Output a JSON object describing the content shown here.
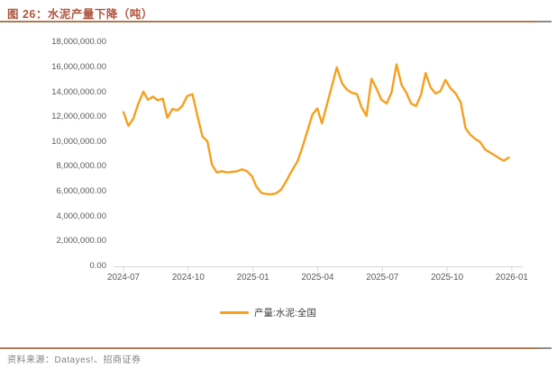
{
  "header": {
    "title": "图 26：水泥产量下降（吨）"
  },
  "legend": {
    "label": "产量:水泥:全国"
  },
  "footer": {
    "source": "资料来源：Datayes!、招商证券"
  },
  "colors": {
    "line": "#F6A01E",
    "title": "#B0543E",
    "rule_brown": "#AF7A52",
    "rule_gray": "#8C8C8C",
    "axis_text": "#595959",
    "axis_line": "#D6D6D6"
  },
  "chart_data": {
    "type": "line",
    "title": "水泥产量下降（吨）",
    "xlabel": "",
    "ylabel": "",
    "ylim": [
      0,
      18000000
    ],
    "y_tick_interval": 2000000,
    "grid": false,
    "legend_position": "bottom",
    "y_tick_labels": [
      "18,000,000.00",
      "16,000,000.00",
      "14,000,000.00",
      "12,000,000.00",
      "10,000,000.00",
      "8,000,000.00",
      "6,000,000.00",
      "4,000,000.00",
      "2,000,000.00",
      "0.00"
    ],
    "x_tick_labels": [
      "2024-07",
      "2024-10",
      "2025-01",
      "2025-04",
      "2025-07",
      "2025-10",
      "2026-01"
    ],
    "series": [
      {
        "name": "产量:水泥:全国",
        "color": "#F6A01E",
        "points": [
          [
            "2024-07-01",
            12400000
          ],
          [
            "2024-07-08",
            11300000
          ],
          [
            "2024-07-15",
            11900000
          ],
          [
            "2024-07-22",
            13100000
          ],
          [
            "2024-07-29",
            14050000
          ],
          [
            "2024-08-05",
            13400000
          ],
          [
            "2024-08-12",
            13650000
          ],
          [
            "2024-08-19",
            13350000
          ],
          [
            "2024-08-26",
            13500000
          ],
          [
            "2024-09-02",
            11950000
          ],
          [
            "2024-09-09",
            12650000
          ],
          [
            "2024-09-16",
            12550000
          ],
          [
            "2024-09-23",
            12900000
          ],
          [
            "2024-09-30",
            13700000
          ],
          [
            "2024-10-07",
            13850000
          ],
          [
            "2024-10-14",
            12100000
          ],
          [
            "2024-10-21",
            10450000
          ],
          [
            "2024-10-28",
            10050000
          ],
          [
            "2024-11-04",
            8200000
          ],
          [
            "2024-11-11",
            7550000
          ],
          [
            "2024-11-18",
            7650000
          ],
          [
            "2024-11-25",
            7550000
          ],
          [
            "2024-12-02",
            7600000
          ],
          [
            "2024-12-09",
            7650000
          ],
          [
            "2024-12-16",
            7800000
          ],
          [
            "2024-12-23",
            7650000
          ],
          [
            "2024-12-30",
            7250000
          ],
          [
            "2025-01-06",
            6400000
          ],
          [
            "2025-01-13",
            5900000
          ],
          [
            "2025-01-20",
            5820000
          ],
          [
            "2025-01-27",
            5800000
          ],
          [
            "2025-02-03",
            5870000
          ],
          [
            "2025-02-10",
            6150000
          ],
          [
            "2025-02-17",
            6800000
          ],
          [
            "2025-02-24",
            7550000
          ],
          [
            "2025-03-03",
            8450000
          ],
          [
            "2025-03-10",
            9600000
          ],
          [
            "2025-03-17",
            10900000
          ],
          [
            "2025-03-24",
            12200000
          ],
          [
            "2025-03-31",
            12700000
          ],
          [
            "2025-04-07",
            11500000
          ],
          [
            "2025-04-14",
            13000000
          ],
          [
            "2025-04-21",
            14500000
          ],
          [
            "2025-04-28",
            16000000
          ],
          [
            "2025-05-05",
            14700000
          ],
          [
            "2025-05-12",
            14200000
          ],
          [
            "2025-05-19",
            13950000
          ],
          [
            "2025-05-26",
            13850000
          ],
          [
            "2025-06-02",
            12800000
          ],
          [
            "2025-06-09",
            12100000
          ],
          [
            "2025-06-16",
            15100000
          ],
          [
            "2025-06-23",
            14300000
          ],
          [
            "2025-06-30",
            13400000
          ],
          [
            "2025-07-07",
            13100000
          ],
          [
            "2025-07-14",
            14000000
          ],
          [
            "2025-07-21",
            16250000
          ],
          [
            "2025-07-28",
            14600000
          ],
          [
            "2025-08-04",
            14000000
          ],
          [
            "2025-08-11",
            13100000
          ],
          [
            "2025-08-18",
            12900000
          ],
          [
            "2025-08-25",
            13800000
          ],
          [
            "2025-09-01",
            15550000
          ],
          [
            "2025-09-08",
            14400000
          ],
          [
            "2025-09-15",
            13900000
          ],
          [
            "2025-09-22",
            14100000
          ],
          [
            "2025-09-29",
            15000000
          ],
          [
            "2025-10-06",
            14300000
          ],
          [
            "2025-10-13",
            13900000
          ],
          [
            "2025-10-20",
            13200000
          ],
          [
            "2025-10-27",
            11100000
          ],
          [
            "2025-11-03",
            10600000
          ],
          [
            "2025-11-10",
            10250000
          ],
          [
            "2025-11-17",
            10000000
          ],
          [
            "2025-11-24",
            9400000
          ],
          [
            "2025-12-01",
            9150000
          ],
          [
            "2025-12-08",
            8900000
          ],
          [
            "2025-12-15",
            8650000
          ],
          [
            "2025-12-20",
            8500000
          ],
          [
            "2025-12-27",
            8750000
          ]
        ]
      }
    ]
  }
}
